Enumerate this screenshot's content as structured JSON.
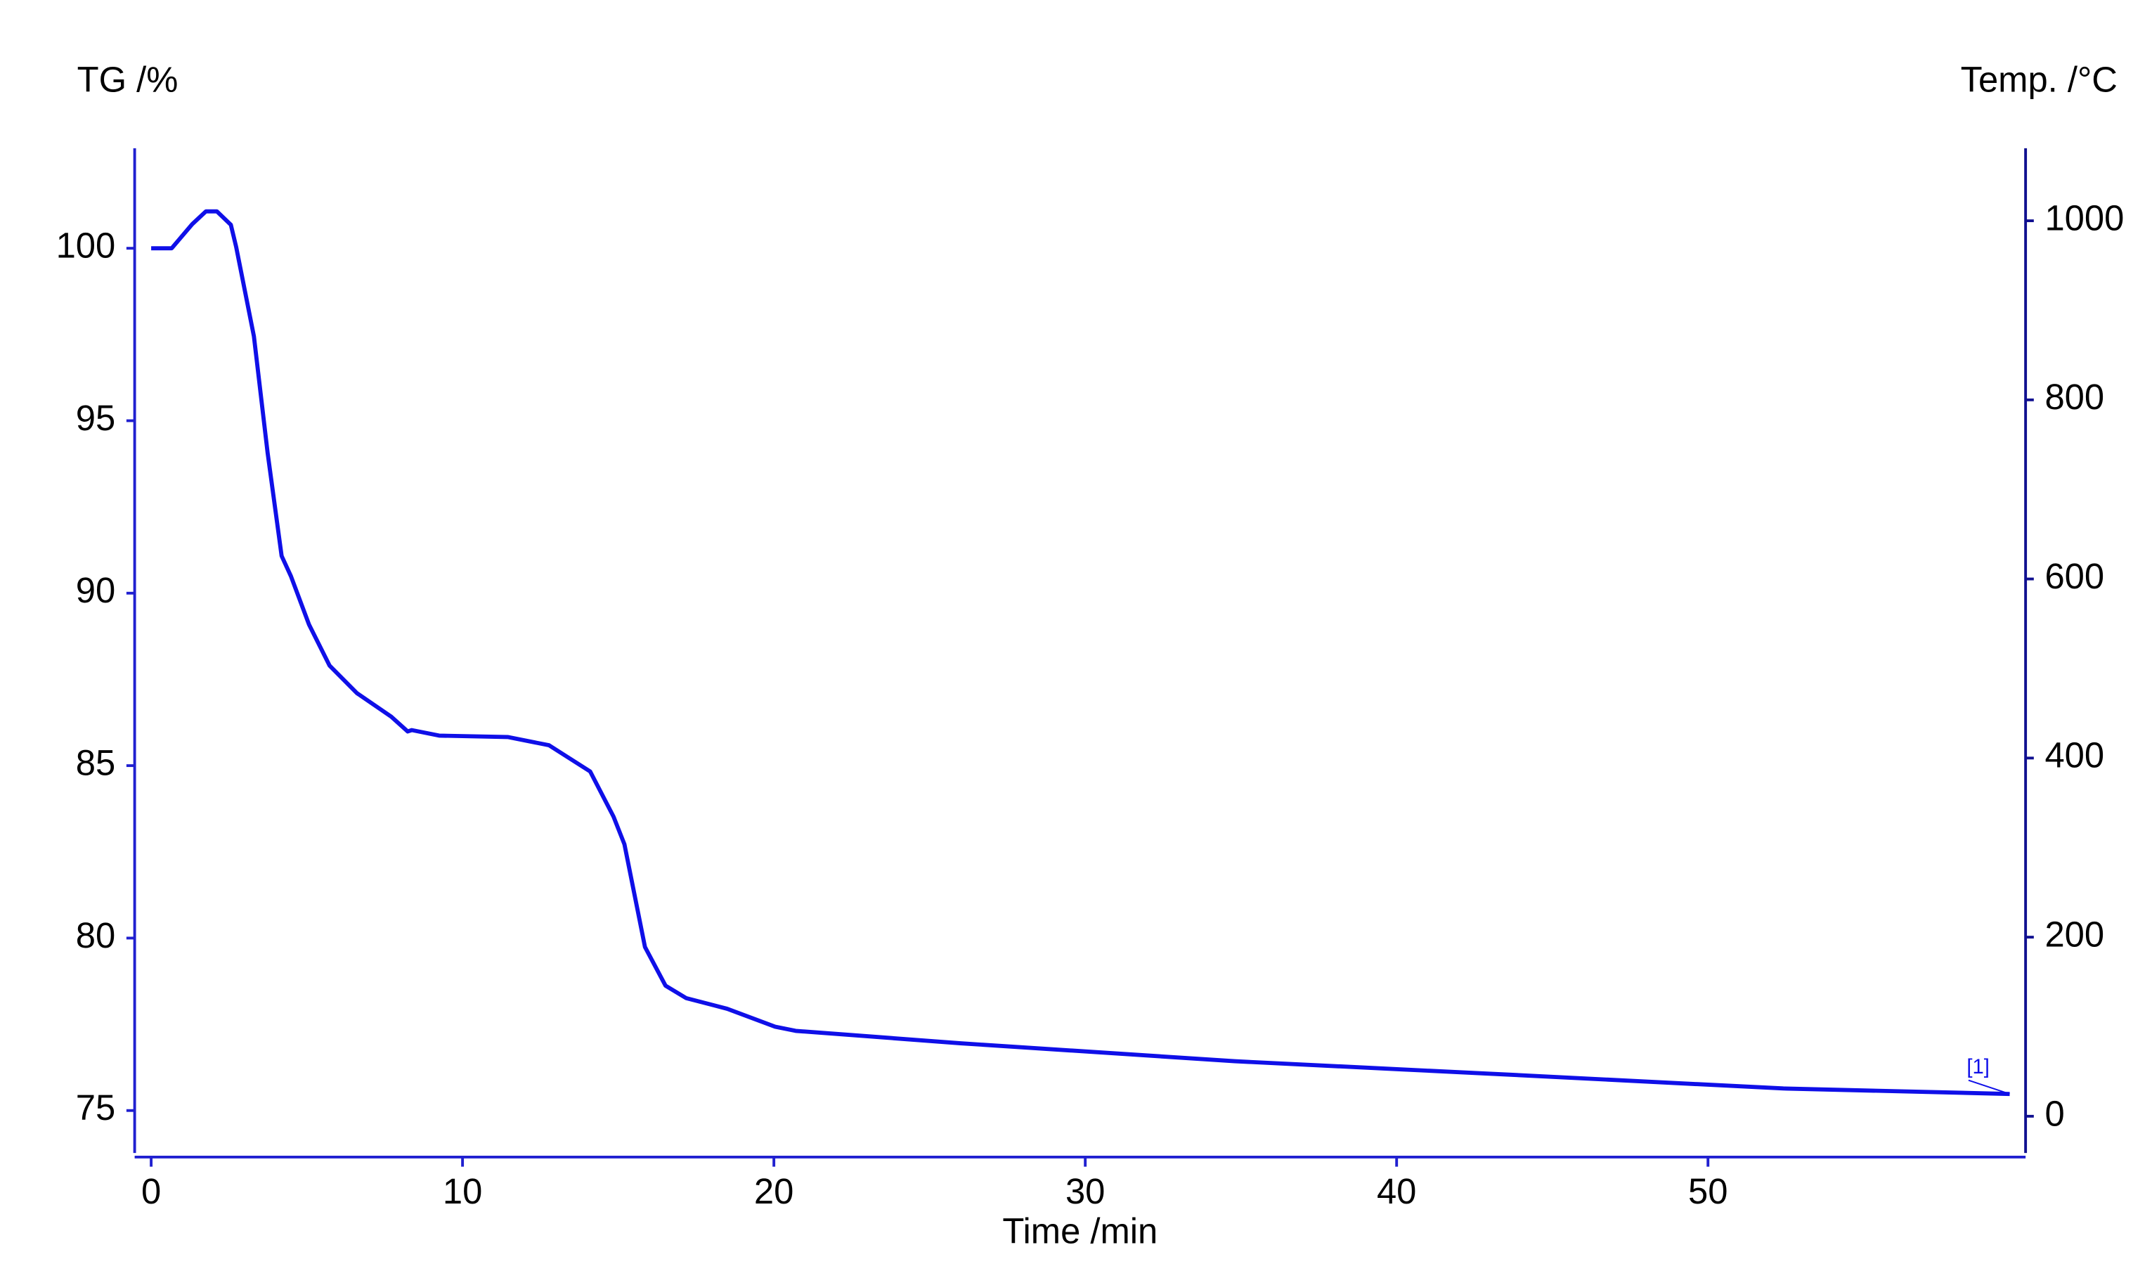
{
  "chart_data": {
    "type": "line",
    "y_label": "TG /%",
    "y2_label": "Temp. /°C",
    "x_label": "Time /min",
    "annotation": "[1]",
    "color": "#0f0fe8",
    "axis_color": "#2020d0",
    "axis2_color": "#101090",
    "x": [
      0,
      0.66,
      1.32,
      1.76,
      2.11,
      2.56,
      2.73,
      3.3,
      3.74,
      4.19,
      4.49,
      5.07,
      5.73,
      6.61,
      7.71,
      8.24,
      8.37,
      9.25,
      11.45,
      12.78,
      14.1,
      14.85,
      15.2,
      15.86,
      16.52,
      17.18,
      18.5,
      20.04,
      20.7,
      25.99,
      34.8,
      43.61,
      52.42,
      59.69
    ],
    "values": [
      100,
      100,
      100.7,
      101.07,
      101.07,
      100.68,
      100.04,
      97.45,
      94.07,
      91.08,
      90.49,
      89.09,
      87.9,
      87.1,
      86.42,
      85.99,
      86.03,
      85.87,
      85.83,
      85.59,
      84.83,
      83.52,
      82.72,
      79.74,
      78.62,
      78.26,
      77.95,
      77.43,
      77.31,
      76.95,
      76.43,
      76.04,
      75.64,
      75.48
    ],
    "xlim": [
      -0.53,
      60.2
    ],
    "xticks": [
      0,
      10,
      20,
      30,
      40,
      50
    ],
    "ylim": [
      73.77,
      102.9
    ],
    "yticks": [
      75,
      80,
      85,
      90,
      95,
      100
    ],
    "y2lim": [
      -41,
      1081
    ],
    "y2ticks": [
      0,
      200,
      400,
      600,
      800,
      1000
    ]
  }
}
